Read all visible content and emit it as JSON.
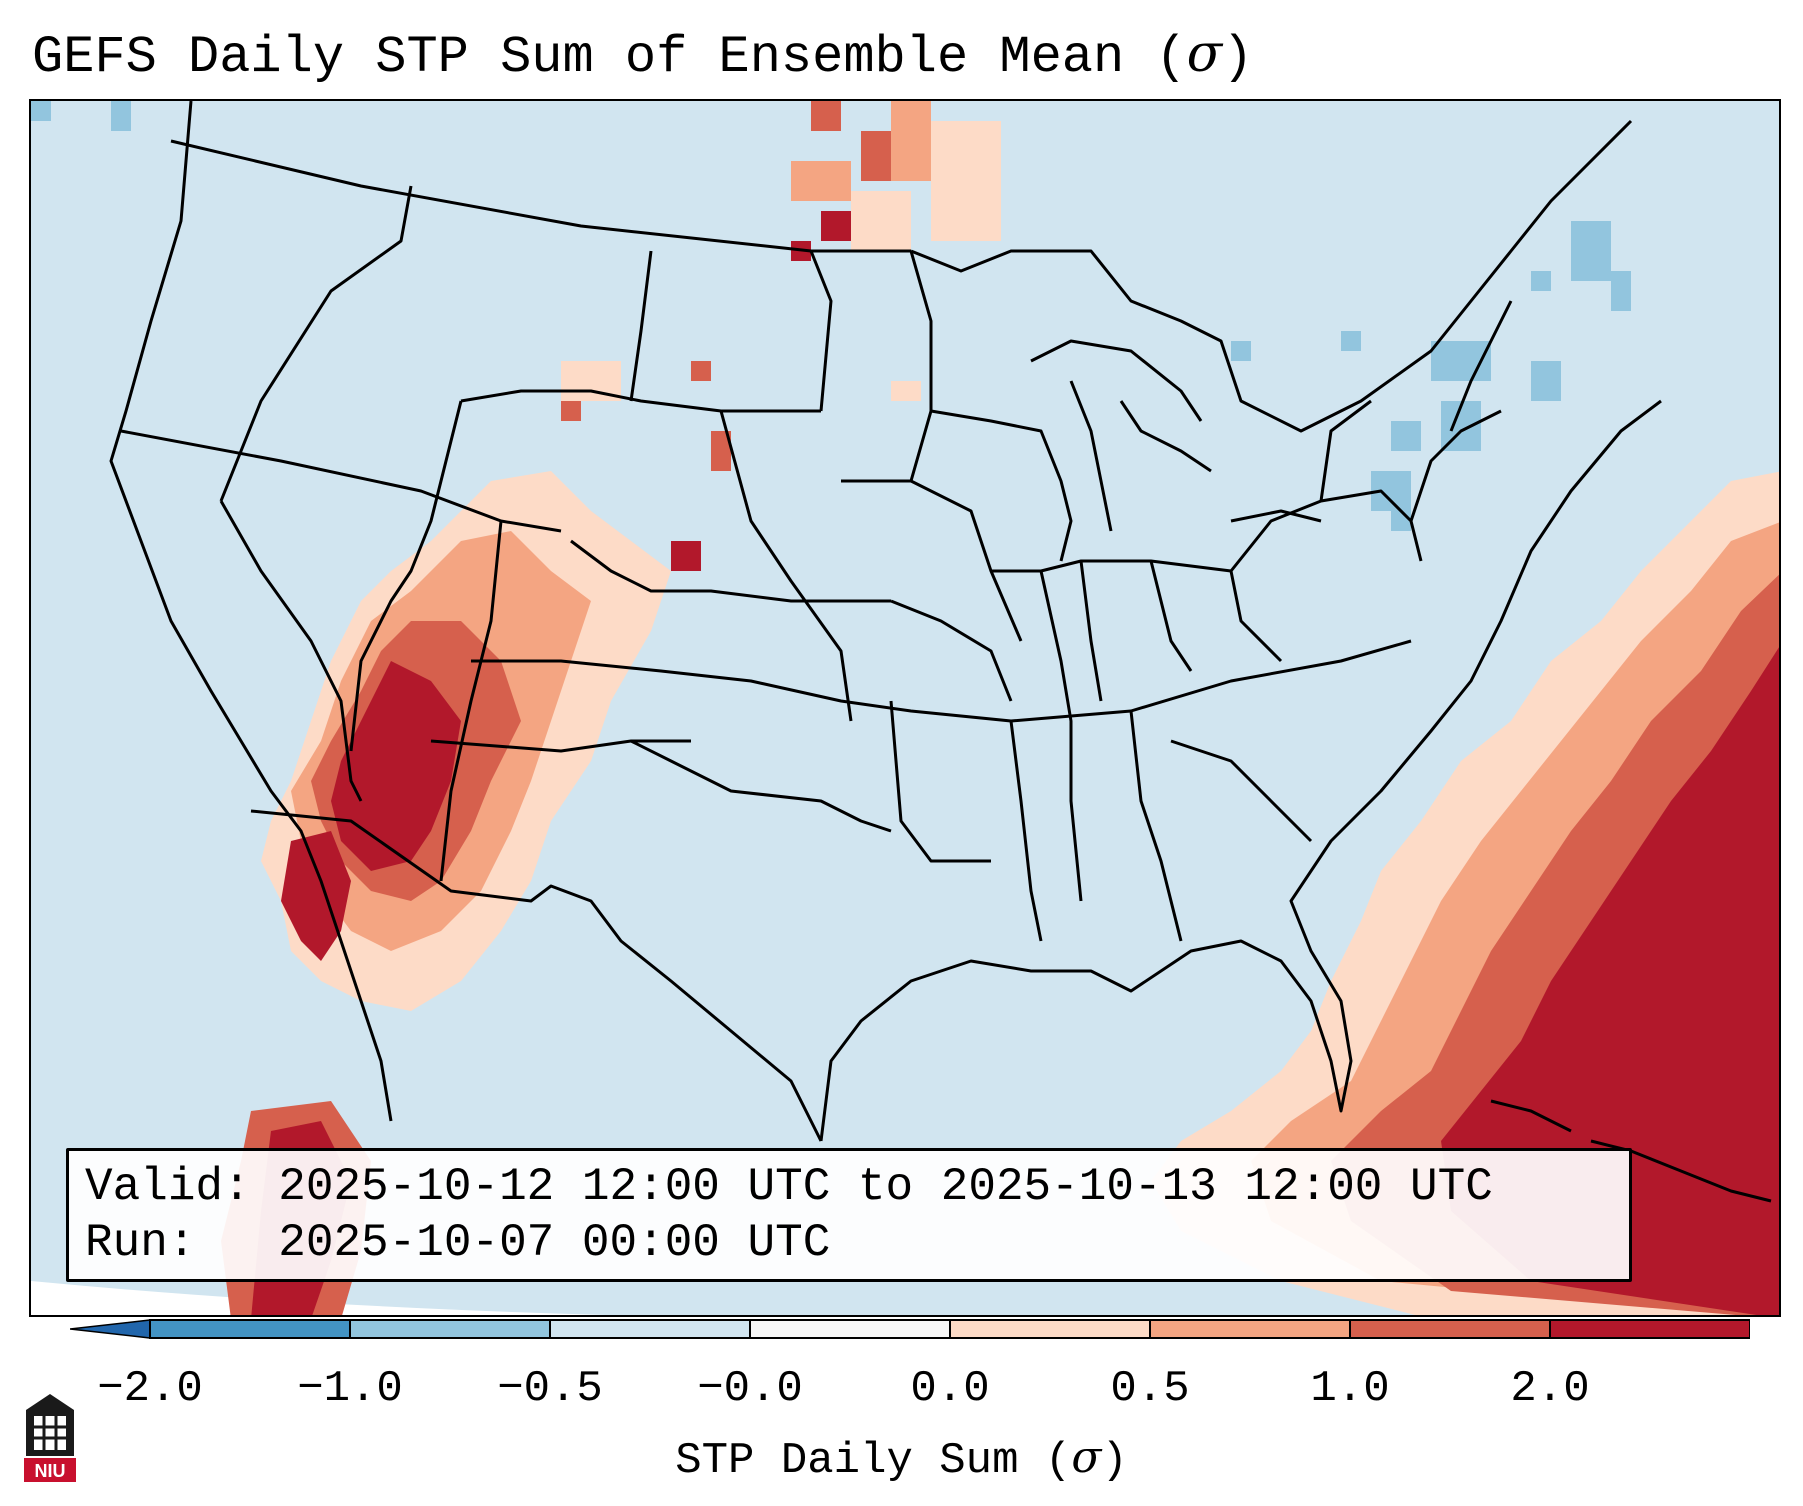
{
  "title": {
    "main": "GEFS Daily STP Sum of Ensemble Mean (",
    "symbol": "σ",
    "close": ")"
  },
  "info_box": {
    "valid_line": "Valid: 2025-10-12 12:00 UTC to 2025-10-13 12:00 UTC",
    "run_line": "Run:   2025-10-07 00:00 UTC"
  },
  "colorbar": {
    "tick_labels": [
      "−2.0",
      "−1.0",
      "−0.5",
      "−0.0",
      "0.0",
      "0.5",
      "1.0",
      "2.0"
    ],
    "label_text": "STP Daily Sum (",
    "label_symbol": "σ",
    "label_close": ")",
    "colors": [
      "#4393c3",
      "#92c5de",
      "#d1e5f0",
      "#f7f7f7",
      "#fddbc7",
      "#f4a582",
      "#d6604d",
      "#b2182b"
    ],
    "under_color": "#2166ac",
    "over_color": "#b2182b"
  },
  "logo": {
    "text": "NIU",
    "color": "#c8102e"
  }
}
